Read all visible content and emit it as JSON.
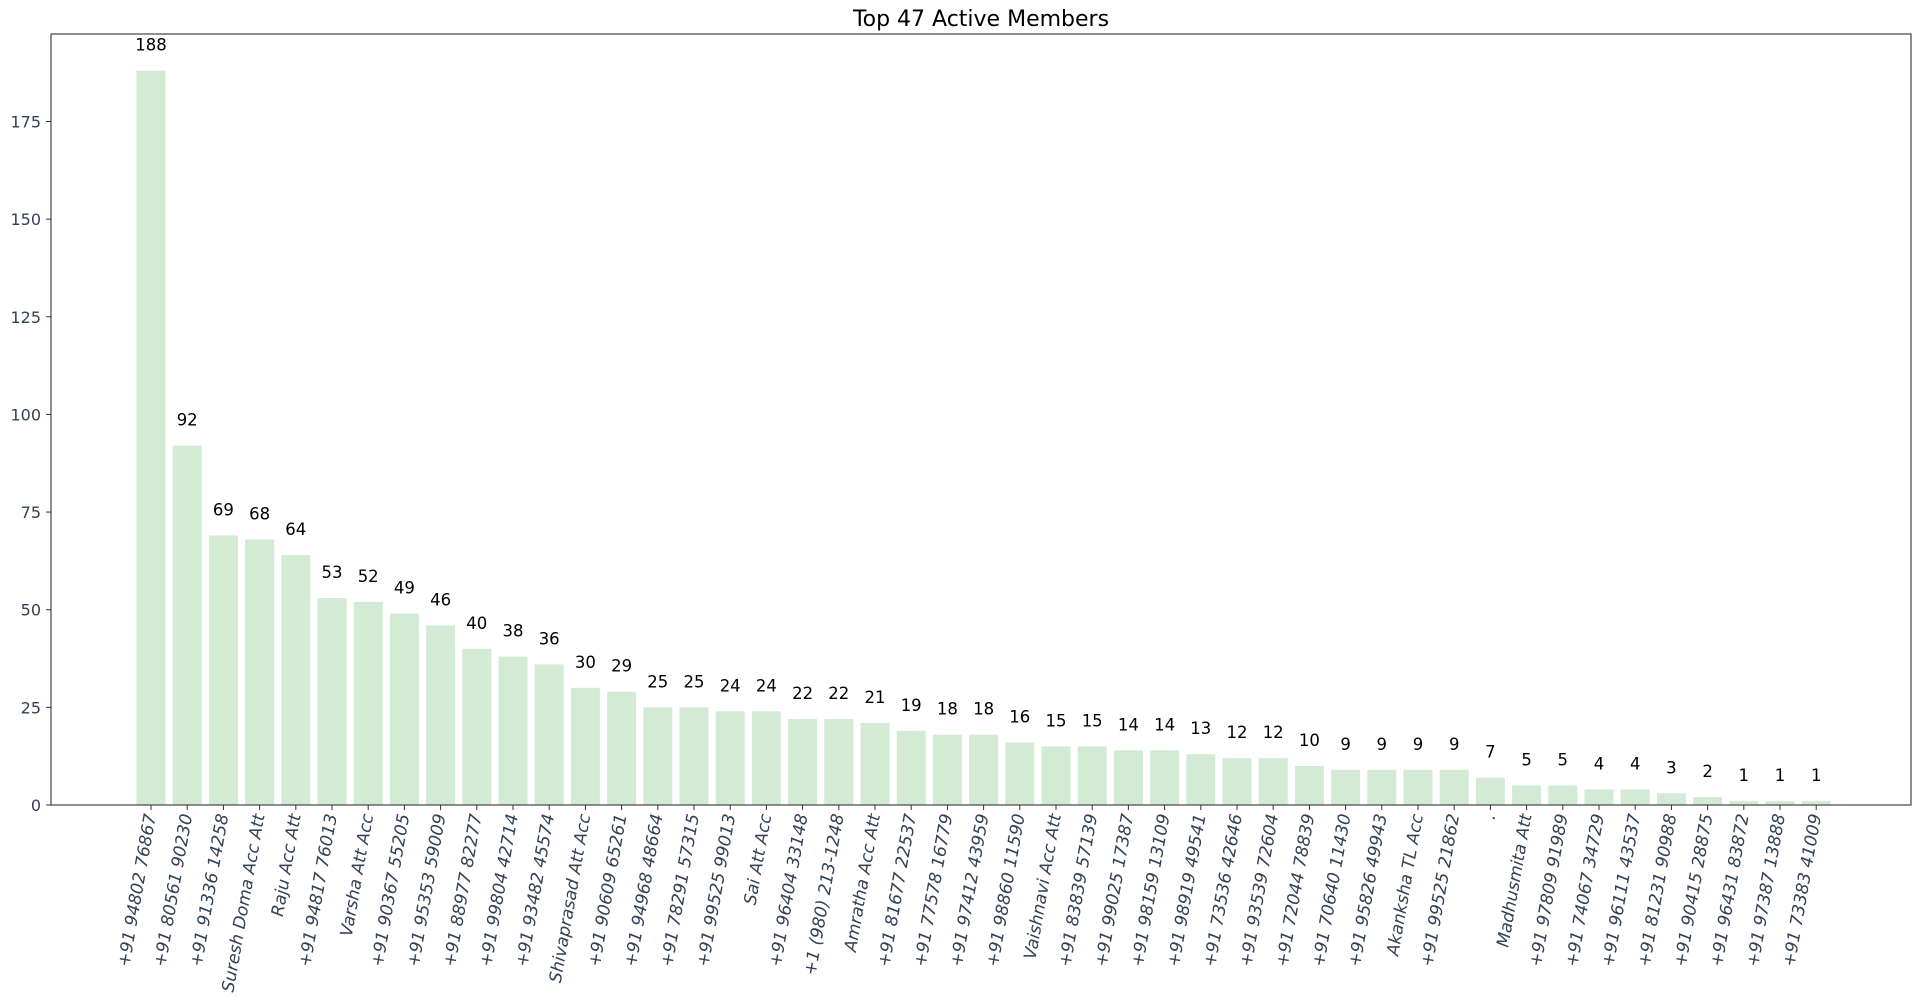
{
  "chart_data": {
    "type": "bar",
    "title": "Top 47 Active Members",
    "xlabel": "",
    "ylabel": "",
    "ylim": [
      0,
      197.4
    ],
    "yticks": [
      0,
      25,
      50,
      75,
      100,
      125,
      150,
      175
    ],
    "grid": false,
    "bar_color": "#d3ebd5",
    "categories": [
      "+91 94802 76867",
      "+91 80561 90230",
      "+91 91336 14258",
      "Suresh Doma Acc Att",
      "Raju Acc Att",
      "+91 94817 76013",
      "Varsha Att Acc",
      "+91 90367 55205",
      "+91 95353 59009",
      "+91 88977 82277",
      "+91 99804 42714",
      "+91 93482 45574",
      "Shivaprasad Att Acc",
      "+91 90609 65261",
      "+91 94968 48664",
      "+91 78291 57315",
      "+91 99525 99013",
      "Sai Att Acc",
      "+91 96404 33148",
      "+1 (980) 213-1248",
      "Amratha Acc Att",
      "+91 81677 22537",
      "+91 77578 16779",
      "+91 97412 43959",
      "+91 98860 11590",
      "Vaishnavi Acc Att",
      "+91 83839 57139",
      "+91 99025 17387",
      "+91 98159 13109",
      "+91 98919 49541",
      "+91 73536 42646",
      "+91 93539 72604",
      "+91 72044 78839",
      "+91 70640 11430",
      "+91 95826 49943",
      "Akanksha TL Acc",
      "+91 99525 21862",
      ".",
      "Madhusmita Att",
      "+91 97809 91989",
      "+91 74067 34729",
      "+91 96111 43537",
      "+91 81231 90988",
      "+91 90415 28875",
      "+91 96431 83872",
      "+91 97387 13888",
      "+91 73383 41009"
    ],
    "values": [
      188,
      92,
      69,
      68,
      64,
      53,
      52,
      49,
      46,
      40,
      38,
      36,
      30,
      29,
      25,
      25,
      24,
      24,
      22,
      22,
      21,
      19,
      18,
      18,
      16,
      15,
      15,
      14,
      14,
      13,
      12,
      12,
      10,
      9,
      9,
      9,
      9,
      7,
      5,
      5,
      4,
      4,
      3,
      2,
      1,
      1,
      1
    ]
  }
}
